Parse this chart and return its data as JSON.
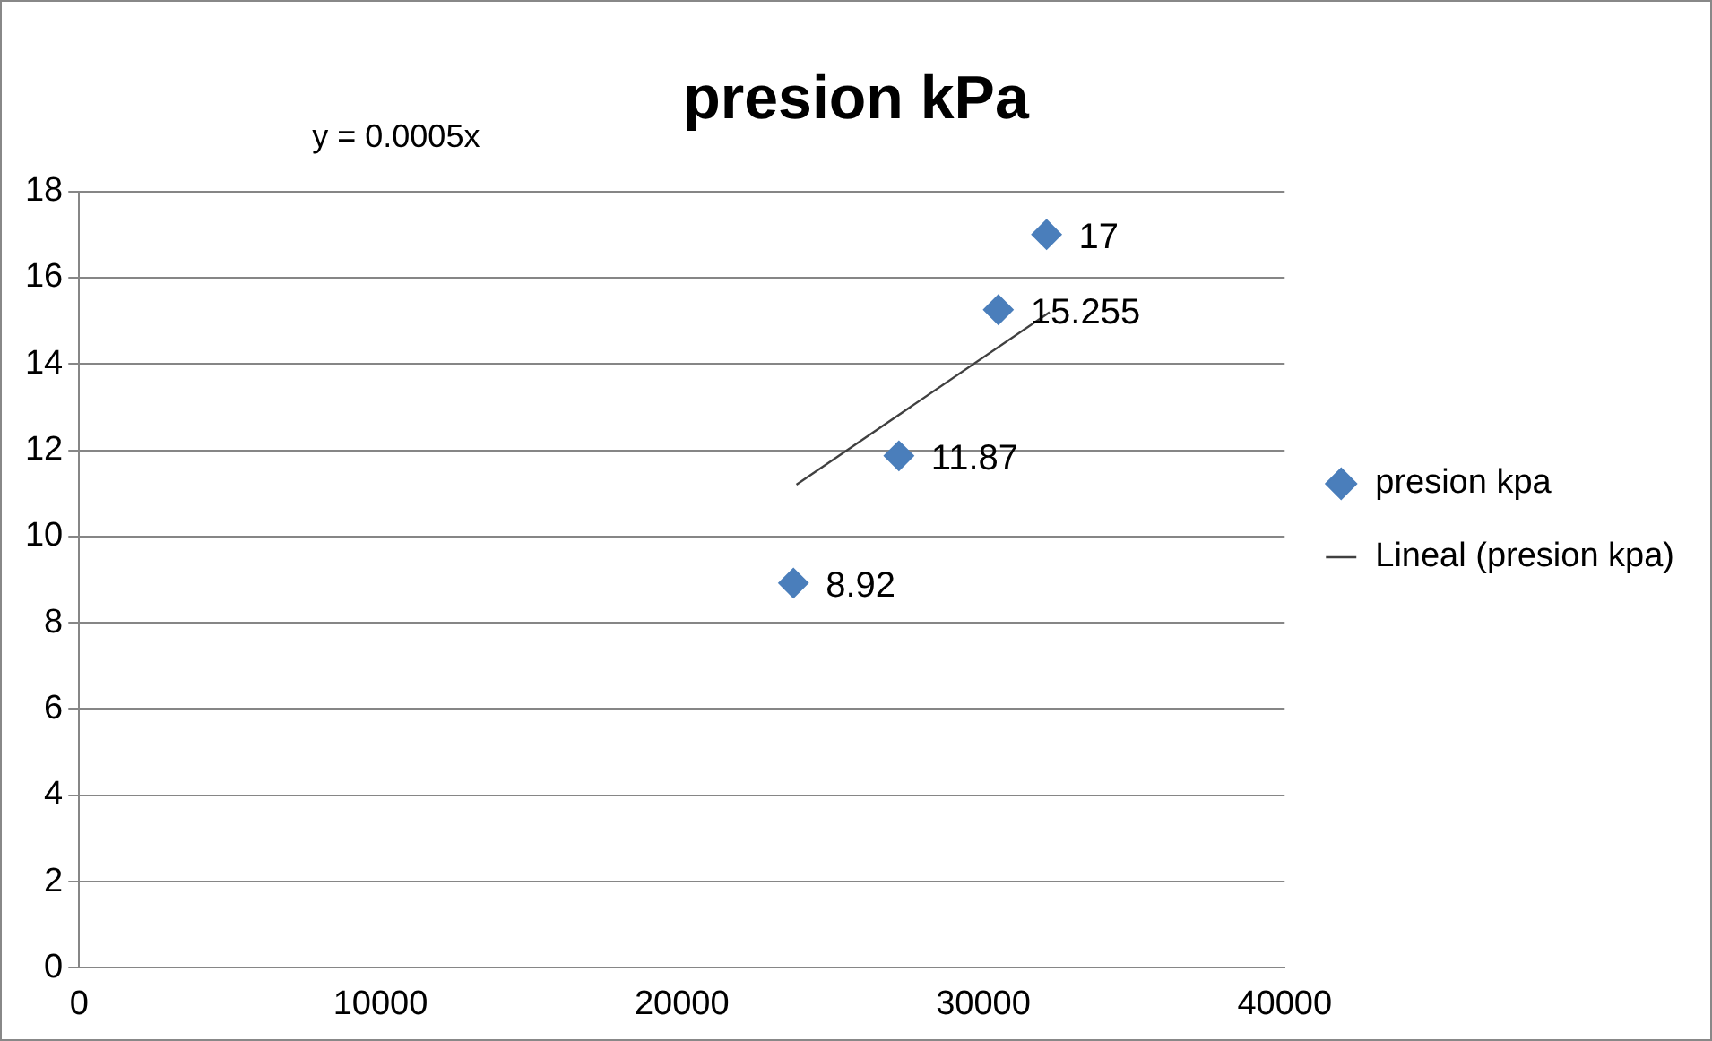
{
  "chart_data": {
    "type": "scatter",
    "title": "presion kPa",
    "annotations": [
      "y = 0.0005x"
    ],
    "series": [
      {
        "name": "presion kpa",
        "color": "#4a7ebb",
        "x": [
          23700,
          27200,
          30500,
          32100
        ],
        "values": [
          8.92,
          11.87,
          15.255,
          17
        ],
        "value_labels": [
          "8.92",
          "11.87",
          "15.255",
          "17"
        ],
        "marker": "diamond"
      },
      {
        "name": "Lineal (presion kpa)",
        "type": "line",
        "color": "#404040",
        "x": [
          23800,
          32200
        ],
        "values": [
          11.2,
          15.2
        ],
        "marker": "none"
      }
    ],
    "xlim": [
      0,
      40000
    ],
    "xticks": [
      0,
      10000,
      20000,
      30000,
      40000
    ],
    "ylim": [
      0,
      18
    ],
    "yticks": [
      0,
      2,
      4,
      6,
      8,
      10,
      12,
      14,
      16,
      18
    ],
    "grid": "y",
    "legend": "right"
  }
}
